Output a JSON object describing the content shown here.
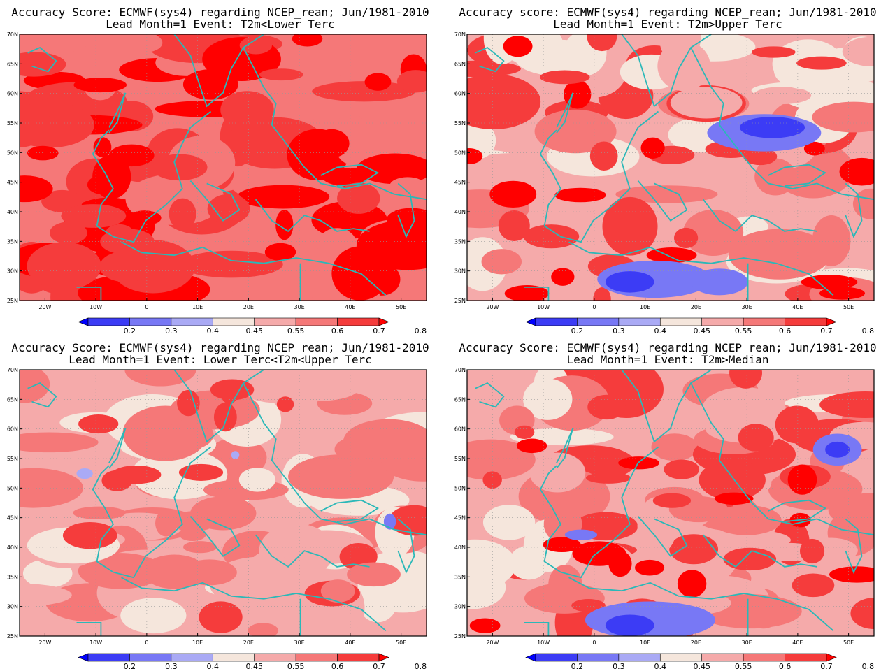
{
  "figure": {
    "panels": [
      {
        "title_line1": "Accuracy Score: ECMWF(sys4) regarding NCEP_rean; Jun/1981-2010",
        "title_line2": "Lead Month=1 Event: T2m<Lower Terc",
        "dominant": "red"
      },
      {
        "title_line1": "Accuracy score: ECMWF(sys4) regarding NCEP_rean; Jun/1981-2010",
        "title_line2": "Lead Month=1 Event: T2m>Upper Terc",
        "dominant": "mixed"
      },
      {
        "title_line1": "Accuracy Score: ECMWF(sys4) regarding NCEP_rean; Jun/1981-2010",
        "title_line2": "Lead Month=1 Event: Lower Terc<T2m<Upper Terc",
        "dominant": "pink"
      },
      {
        "title_line1": "Accuracy Score: ECMWF(sys4) regarding NCEP_rean; Jun/1981-2010",
        "title_line2": "Lead Month=1 Event: T2m>Median",
        "dominant": "mixed"
      }
    ],
    "lat_ticks": [
      "70N",
      "65N",
      "60N",
      "55N",
      "50N",
      "45N",
      "40N",
      "35N",
      "30N",
      "25N"
    ],
    "lon_ticks": [
      "20W",
      "10W",
      "0",
      "10E",
      "20E",
      "30E",
      "40E",
      "50E"
    ],
    "colorbar": {
      "labels": [
        "0.2",
        "0.3",
        "0.4",
        "0.45",
        "0.55",
        "0.6",
        "0.7",
        "0.8"
      ],
      "colors": [
        "#0000ff",
        "#3c3cf5",
        "#7878f5",
        "#aaaaf5",
        "#f5e6dc",
        "#f5aaaa",
        "#f57878",
        "#f53c3c",
        "#ff0000"
      ]
    }
  },
  "chart_data": {
    "type": "heatmap",
    "variable": "Accuracy Score",
    "region_lon": [
      -25,
      55
    ],
    "region_lat": [
      25,
      70
    ],
    "contour_levels": [
      0.2,
      0.3,
      0.4,
      0.45,
      0.55,
      0.6,
      0.7,
      0.8
    ]
  }
}
